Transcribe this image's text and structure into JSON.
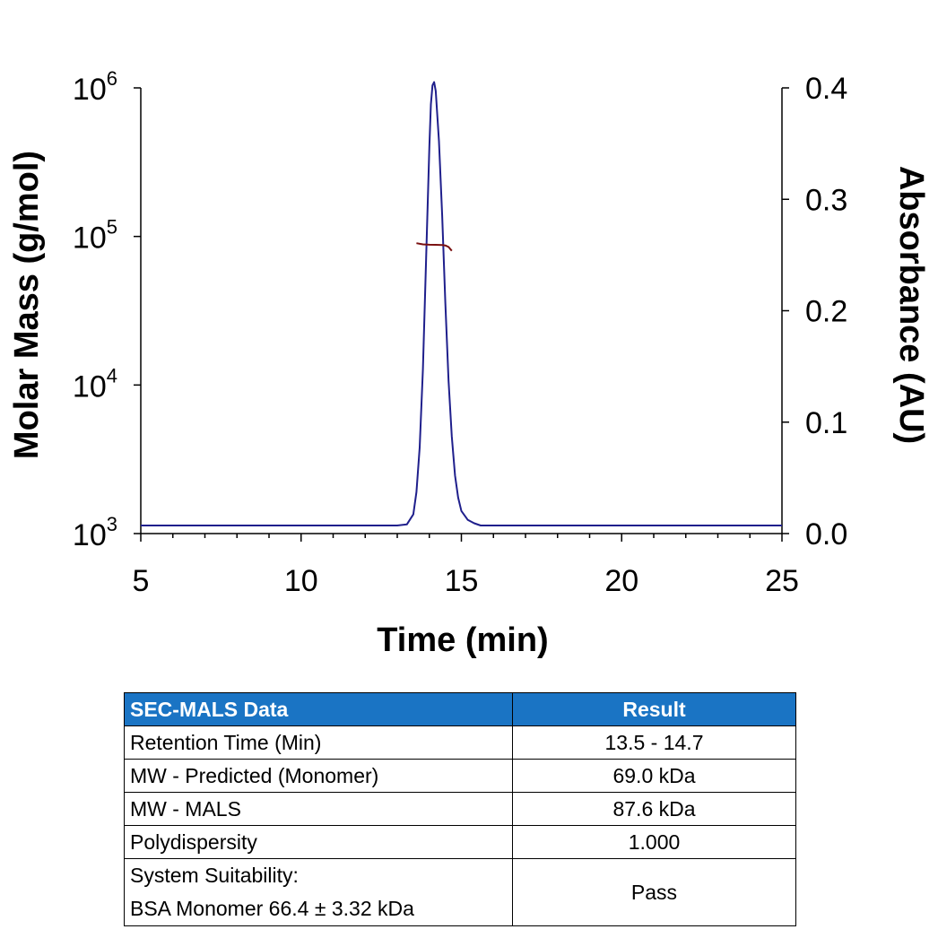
{
  "chart_data": {
    "type": "line",
    "xlabel": "Time (min)",
    "ylabel_left": "Molar Mass (g/mol)",
    "ylabel_right": "Absorbance (AU)",
    "xlim": [
      5,
      25
    ],
    "x_ticks": [
      "5",
      "10",
      "15",
      "20",
      "25"
    ],
    "ylim_left": [
      1000,
      1000000
    ],
    "y_left_scale": "log",
    "y_left_ticks": [
      {
        "value": 1000000,
        "base": "10",
        "exp": "6"
      },
      {
        "value": 100000,
        "base": "10",
        "exp": "5"
      },
      {
        "value": 10000,
        "base": "10",
        "exp": "4"
      },
      {
        "value": 1000,
        "base": "10",
        "exp": "3"
      }
    ],
    "ylim_right": [
      0.0,
      0.4
    ],
    "y_right_ticks": [
      "0.4",
      "0.3",
      "0.2",
      "0.1",
      "0.0"
    ],
    "grid": false,
    "series": [
      {
        "axis": "right",
        "color": "#1f1f8c",
        "x": [
          5.0,
          8.0,
          11.0,
          13.0,
          13.3,
          13.5,
          13.6,
          13.7,
          13.8,
          13.9,
          14.0,
          14.05,
          14.1,
          14.15,
          14.2,
          14.3,
          14.4,
          14.5,
          14.6,
          14.7,
          14.8,
          14.9,
          15.0,
          15.2,
          15.4,
          15.6,
          16.0,
          18.0,
          21.0,
          25.0
        ],
        "y": [
          0.0,
          0.0,
          0.0,
          0.0,
          0.001,
          0.01,
          0.03,
          0.07,
          0.14,
          0.24,
          0.34,
          0.378,
          0.395,
          0.398,
          0.39,
          0.345,
          0.278,
          0.2,
          0.13,
          0.08,
          0.045,
          0.025,
          0.013,
          0.005,
          0.002,
          0.0,
          0.0,
          0.0,
          0.0,
          0.0
        ]
      },
      {
        "axis": "left",
        "color": "#7a1010",
        "x": [
          13.6,
          13.8,
          14.0,
          14.2,
          14.4,
          14.5,
          14.6,
          14.7
        ],
        "y": [
          90000,
          88500,
          88000,
          87800,
          87600,
          87000,
          85000,
          80000
        ]
      }
    ]
  },
  "table": {
    "headers": [
      "SEC-MALS Data",
      "Result"
    ],
    "rows": [
      {
        "label": "Retention Time (Min)",
        "value": "13.5 - 14.7"
      },
      {
        "label": "MW - Predicted (Monomer)",
        "value": "69.0 kDa"
      },
      {
        "label": "MW - MALS",
        "value": "87.6 kDa"
      },
      {
        "label": "Polydispersity",
        "value": "1.000"
      }
    ],
    "last_row": {
      "label_line1": "System Suitability:",
      "label_line2": "BSA Monomer 66.4 ± 3.32 kDa",
      "value": "Pass"
    },
    "header_color": "#1a74c4"
  }
}
